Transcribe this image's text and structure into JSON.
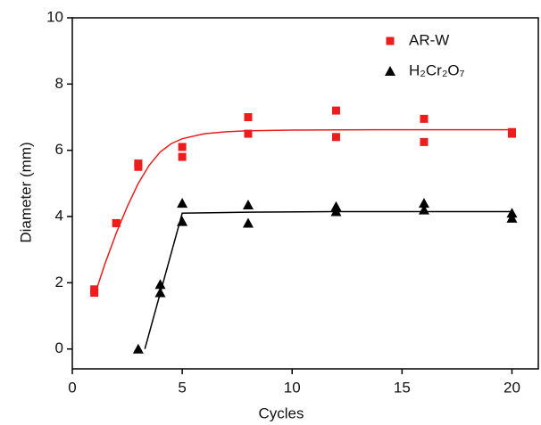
{
  "chart_data": {
    "type": "scatter",
    "xlabel": "Cycles",
    "ylabel": "Diameter (mm)",
    "xlim": [
      0,
      21.2
    ],
    "ylim": [
      -0.6,
      10
    ],
    "xticks": [
      0,
      5,
      10,
      15,
      20
    ],
    "yticks": [
      0,
      2,
      4,
      6,
      8,
      10
    ],
    "legend": "upper right",
    "series": [
      {
        "name": "AR-W",
        "color": "#ee1c1c",
        "marker": "square",
        "x": [
          1,
          1,
          2,
          2,
          3,
          3,
          5,
          5,
          8,
          8,
          12,
          12,
          16,
          16,
          20,
          20
        ],
        "values": [
          1.8,
          1.7,
          3.8,
          3.8,
          5.6,
          5.5,
          6.1,
          5.8,
          7.0,
          6.5,
          7.2,
          6.4,
          6.95,
          6.25,
          6.55,
          6.5
        ]
      },
      {
        "name": "H₂Cr₂O₇",
        "color": "#000000",
        "marker": "triangle",
        "x": [
          3,
          4,
          4,
          5,
          5,
          8,
          8,
          12,
          12,
          16,
          16,
          20,
          20
        ],
        "values": [
          0.0,
          1.95,
          1.7,
          4.4,
          3.85,
          4.35,
          3.8,
          4.3,
          4.15,
          4.4,
          4.2,
          4.1,
          3.95
        ]
      }
    ],
    "lines": [
      {
        "color": "#ee1c1c",
        "x": [
          1,
          1.5,
          2,
          2.5,
          3,
          3.5,
          4,
          4.5,
          5,
          6,
          7,
          8,
          10,
          14,
          20
        ],
        "values": [
          1.6,
          2.6,
          3.5,
          4.3,
          5.0,
          5.55,
          5.95,
          6.2,
          6.35,
          6.5,
          6.56,
          6.59,
          6.61,
          6.62,
          6.62
        ]
      },
      {
        "color": "#000000",
        "x": [
          3.3,
          5,
          8,
          12,
          20
        ],
        "values": [
          0.0,
          4.1,
          4.13,
          4.15,
          4.15
        ]
      }
    ]
  }
}
